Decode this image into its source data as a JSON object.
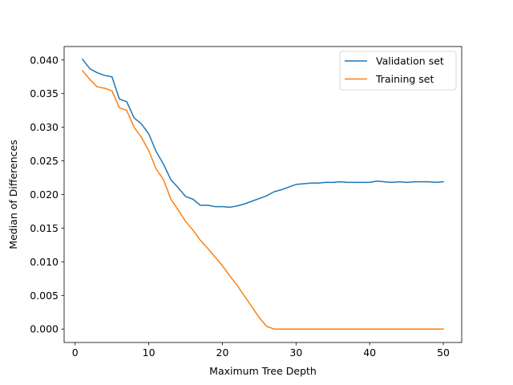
{
  "chart_data": {
    "type": "line",
    "title": "",
    "xlabel": "Maximum Tree Depth",
    "ylabel": "Median of Differences",
    "xlim": [
      -1.5,
      52.5
    ],
    "ylim": [
      -0.002,
      0.042
    ],
    "xticks": [
      0,
      10,
      20,
      30,
      40,
      50
    ],
    "xtick_labels": [
      "0",
      "10",
      "20",
      "30",
      "40",
      "50"
    ],
    "yticks": [
      0.0,
      0.005,
      0.01,
      0.015,
      0.02,
      0.025,
      0.03,
      0.035,
      0.04
    ],
    "ytick_labels": [
      "0.000",
      "0.005",
      "0.010",
      "0.015",
      "0.020",
      "0.025",
      "0.030",
      "0.035",
      "0.040"
    ],
    "grid": false,
    "legend_position": "top-right",
    "x": [
      1,
      2,
      3,
      4,
      5,
      6,
      7,
      8,
      9,
      10,
      11,
      12,
      13,
      14,
      15,
      16,
      17,
      18,
      19,
      20,
      21,
      22,
      23,
      24,
      25,
      26,
      27,
      28,
      29,
      30,
      31,
      32,
      33,
      34,
      35,
      36,
      37,
      38,
      39,
      40,
      41,
      42,
      43,
      44,
      45,
      46,
      47,
      48,
      49,
      50
    ],
    "series": [
      {
        "name": "Validation set",
        "color": "#1f77b4",
        "values": [
          0.0401,
          0.0387,
          0.0381,
          0.0377,
          0.0375,
          0.0342,
          0.0338,
          0.0314,
          0.0305,
          0.029,
          0.0264,
          0.0245,
          0.0222,
          0.021,
          0.0197,
          0.0193,
          0.0184,
          0.0184,
          0.0182,
          0.0182,
          0.0181,
          0.0183,
          0.0186,
          0.019,
          0.0194,
          0.0198,
          0.0204,
          0.0207,
          0.0211,
          0.0215,
          0.0216,
          0.0217,
          0.0217,
          0.0218,
          0.0218,
          0.0219,
          0.0218,
          0.0218,
          0.0218,
          0.0218,
          0.022,
          0.0219,
          0.0218,
          0.0219,
          0.0218,
          0.0219,
          0.0219,
          0.0219,
          0.0218,
          0.0219
        ]
      },
      {
        "name": "Training set",
        "color": "#ff7f0e",
        "values": [
          0.0384,
          0.0371,
          0.036,
          0.0358,
          0.0354,
          0.0329,
          0.0325,
          0.03,
          0.0285,
          0.0265,
          0.0238,
          0.0222,
          0.0193,
          0.0177,
          0.016,
          0.0147,
          0.0132,
          0.012,
          0.0107,
          0.0094,
          0.0079,
          0.0065,
          0.0049,
          0.0033,
          0.0017,
          0.0004,
          0.0,
          0.0,
          0.0,
          0.0,
          0.0,
          0.0,
          0.0,
          0.0,
          0.0,
          0.0,
          0.0,
          0.0,
          0.0,
          0.0,
          0.0,
          0.0,
          0.0,
          0.0,
          0.0,
          0.0,
          0.0,
          0.0,
          0.0,
          0.0
        ]
      }
    ]
  }
}
